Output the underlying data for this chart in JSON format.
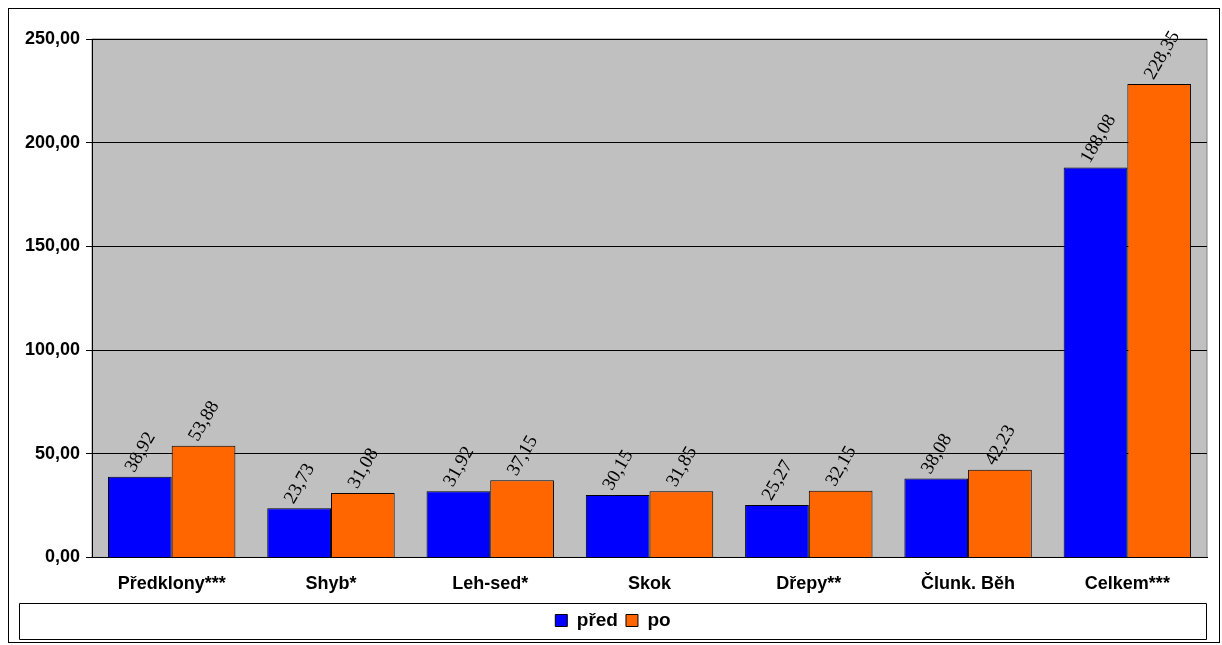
{
  "chart_data": {
    "type": "bar",
    "categories": [
      "Předklony***",
      "Shyb*",
      "Leh-sed*",
      "Skok",
      "Dřepy**",
      "Člunk. Běh",
      "Celkem***"
    ],
    "series": [
      {
        "name": "před",
        "color": "#0000ff",
        "values": [
          38.92,
          23.73,
          31.92,
          30.15,
          25.27,
          38.08,
          188.08
        ],
        "value_labels": [
          "38,92",
          "23,73",
          "31,92",
          "30,15",
          "25,27",
          "38,08",
          "188,08"
        ]
      },
      {
        "name": "po",
        "color": "#ff6600",
        "values": [
          53.88,
          31.08,
          37.15,
          31.85,
          32.15,
          42.23,
          228.35
        ],
        "value_labels": [
          "53,88",
          "31,08",
          "37,15",
          "31,85",
          "32,15",
          "42,23",
          "228,35"
        ]
      }
    ],
    "ylim": [
      0,
      250
    ],
    "yticks": [
      {
        "value": 0,
        "label": "0,00"
      },
      {
        "value": 50,
        "label": "50,00"
      },
      {
        "value": 100,
        "label": "100,00"
      },
      {
        "value": 150,
        "label": "150,00"
      },
      {
        "value": 200,
        "label": "200,00"
      },
      {
        "value": 250,
        "label": "250,00"
      }
    ],
    "grid": "y",
    "legend": "bottom"
  }
}
